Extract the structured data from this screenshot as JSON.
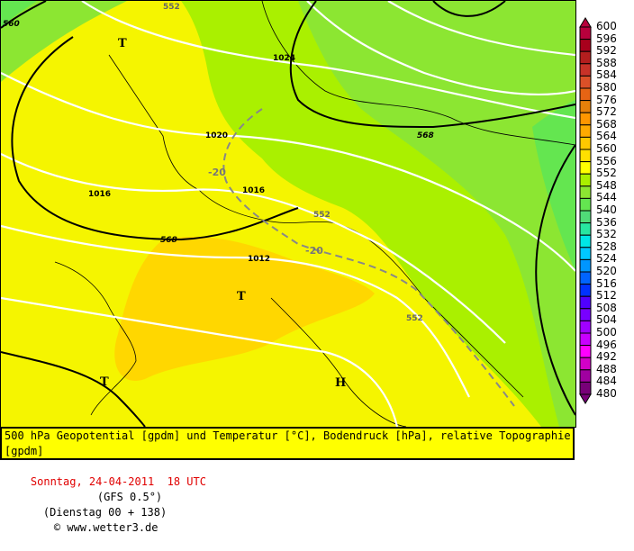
{
  "map": {
    "isobar_labels": [
      "1024",
      "1020",
      "1016",
      "1016",
      "1012"
    ],
    "geopotential_labels": [
      "560",
      "568",
      "568",
      "552",
      "552",
      "552"
    ],
    "temperature_labels": [
      "-20",
      "-20"
    ],
    "pressure_centers": [
      "T",
      "T",
      "T",
      "H"
    ]
  },
  "legend": {
    "labels": [
      "600",
      "596",
      "592",
      "588",
      "584",
      "580",
      "576",
      "572",
      "568",
      "564",
      "560",
      "556",
      "552",
      "548",
      "544",
      "540",
      "536",
      "532",
      "528",
      "524",
      "520",
      "516",
      "512",
      "508",
      "504",
      "500",
      "496",
      "492",
      "488",
      "484",
      "480"
    ],
    "colors": [
      "#b8003c",
      "#a8001c",
      "#b41e1e",
      "#c83228",
      "#dc5028",
      "#e66414",
      "#e6800a",
      "#ff9600",
      "#ffaa00",
      "#ffc800",
      "#ffe000",
      "#ffff00",
      "#aaf000",
      "#8ce632",
      "#64e650",
      "#50dc78",
      "#28e6a0",
      "#00e6e6",
      "#00c8ff",
      "#0096ff",
      "#0064ff",
      "#0032ff",
      "#5000ff",
      "#7800ff",
      "#a000ff",
      "#c800ff",
      "#ff00ff",
      "#d200c8",
      "#a000a0",
      "#780078"
    ]
  },
  "caption": {
    "line1": "500 hPa Geopotential [gpdm] und Temperatur [°C], Bodendruck [hPa], relative Topographie [gpdm]",
    "date": "Sonntag, 24-04-2011  18 UTC",
    "model": "(GFS 0.5°)",
    "run": "(Dienstag 00 + 138)",
    "copyright": "© www.wetter3.de"
  }
}
